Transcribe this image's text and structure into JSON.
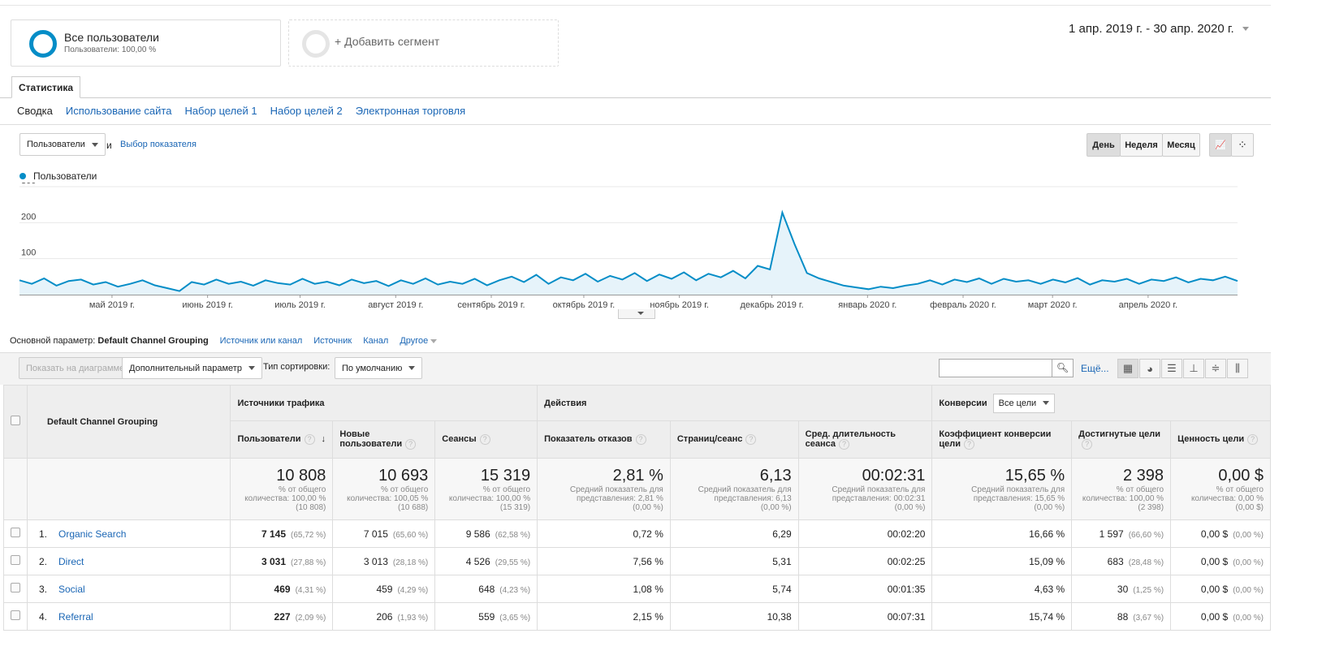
{
  "segments": {
    "all_users": {
      "title": "Все пользователи",
      "subtitle": "Пользователи: 100,00 %"
    },
    "add_segment": "+ Добавить сегмент"
  },
  "date_range": "1 апр. 2019 г. - 30 апр. 2020 г.",
  "tab": "Статистика",
  "subnav": [
    "Сводка",
    "Использование сайта",
    "Набор целей 1",
    "Набор целей 2",
    "Электронная торговля"
  ],
  "metric_select": "Пользователи",
  "and": "и",
  "choose_metric": "Выбор показателя",
  "granularity": [
    "День",
    "Неделя",
    "Месяц"
  ],
  "accent": "#058dc7",
  "chart_data": {
    "type": "line",
    "legend": "Пользователи",
    "ylim": [
      0,
      300
    ],
    "yticks": [
      "100",
      "200",
      "300"
    ],
    "grid": true,
    "x_start": "2019-04-01",
    "x_end": "2020-04-30",
    "step_days": 4,
    "xtick_labels": [
      "май 2019 г.",
      "июнь 2019 г.",
      "июль 2019 г.",
      "август 2019 г.",
      "сентябрь 2019 г.",
      "октябрь 2019 г.",
      "ноябрь 2019 г.",
      "декабрь 2019 г.",
      "январь 2020 г.",
      "февраль 2020 г.",
      "март 2020 г.",
      "апрель 2020 г."
    ],
    "values": [
      40,
      30,
      45,
      25,
      38,
      42,
      28,
      35,
      22,
      30,
      40,
      26,
      18,
      10,
      35,
      28,
      42,
      30,
      36,
      25,
      40,
      32,
      28,
      44,
      30,
      36,
      26,
      42,
      32,
      38,
      24,
      40,
      30,
      45,
      28,
      36,
      30,
      44,
      26,
      40,
      50,
      35,
      55,
      30,
      48,
      40,
      58,
      36,
      52,
      42,
      60,
      38,
      56,
      44,
      62,
      40,
      58,
      48,
      66,
      45,
      80,
      70,
      228,
      140,
      60,
      45,
      35,
      25,
      20,
      15,
      22,
      18,
      25,
      30,
      40,
      28,
      42,
      35,
      45,
      30,
      44,
      36,
      40,
      30,
      42,
      34,
      46,
      28,
      40,
      36,
      44,
      30,
      42,
      38,
      48,
      34,
      44,
      40,
      50,
      38
    ]
  },
  "primary_dim": {
    "label": "Основной параметр:",
    "current": "Default Channel Grouping",
    "options": [
      "Источник или канал",
      "Источник",
      "Канал",
      "Другое"
    ]
  },
  "toolbar": {
    "plot": "Показать на диаграмме",
    "secondary": "Дополнительный параметр",
    "sort_label": "Тип сортировки:",
    "sort_value": "По умолчанию",
    "more": "Ещё..."
  },
  "table": {
    "dim_header": "Default Channel Grouping",
    "group_traffic": "Источники трафика",
    "group_actions": "Действия",
    "group_conv": "Конверсии",
    "goal_select": "Все цели",
    "columns": [
      "Пользователи",
      "Новые пользователи",
      "Сеансы",
      "Показатель отказов",
      "Страниц/сеанс",
      "Сред. длительность сеанса",
      "Коэффициент конверсии цели",
      "Достигнутые цели",
      "Ценность цели"
    ],
    "totals": [
      {
        "value": "10 808",
        "l1": "% от общего",
        "l2": "количества: 100,00 %",
        "l3": "(10 808)"
      },
      {
        "value": "10 693",
        "l1": "% от общего",
        "l2": "количества: 100,05 %",
        "l3": "(10 688)"
      },
      {
        "value": "15 319",
        "l1": "% от общего",
        "l2": "количества: 100,00 %",
        "l3": "(15 319)"
      },
      {
        "value": "2,81 %",
        "l1": "Средний показатель для",
        "l2": "представления: 2,81 %",
        "l3": "(0,00 %)"
      },
      {
        "value": "6,13",
        "l1": "Средний показатель для",
        "l2": "представления: 6,13",
        "l3": "(0,00 %)"
      },
      {
        "value": "00:02:31",
        "l1": "Средний показатель для",
        "l2": "представления: 00:02:31",
        "l3": "(0,00 %)"
      },
      {
        "value": "15,65 %",
        "l1": "Средний показатель для",
        "l2": "представления: 15,65 %",
        "l3": "(0,00 %)"
      },
      {
        "value": "2 398",
        "l1": "% от общего",
        "l2": "количества: 100,00 %",
        "l3": "(2 398)"
      },
      {
        "value": "0,00 $",
        "l1": "% от общего",
        "l2": "количества: 0,00 %",
        "l3": "(0,00 $)"
      }
    ],
    "rows": [
      {
        "n": "1.",
        "name": "Organic Search",
        "users": "7 145",
        "users_pct": "(65,72 %)",
        "new": "7 015",
        "new_pct": "(65,60 %)",
        "sess": "9 586",
        "sess_pct": "(62,58 %)",
        "bounce": "0,72 %",
        "pages": "6,29",
        "dur": "00:02:20",
        "conv": "16,66 %",
        "goals": "1 597",
        "goals_pct": "(66,60 %)",
        "val": "0,00 $",
        "val_pct": "(0,00 %)"
      },
      {
        "n": "2.",
        "name": "Direct",
        "users": "3 031",
        "users_pct": "(27,88 %)",
        "new": "3 013",
        "new_pct": "(28,18 %)",
        "sess": "4 526",
        "sess_pct": "(29,55 %)",
        "bounce": "7,56 %",
        "pages": "5,31",
        "dur": "00:02:25",
        "conv": "15,09 %",
        "goals": "683",
        "goals_pct": "(28,48 %)",
        "val": "0,00 $",
        "val_pct": "(0,00 %)"
      },
      {
        "n": "3.",
        "name": "Social",
        "users": "469",
        "users_pct": "(4,31 %)",
        "new": "459",
        "new_pct": "(4,29 %)",
        "sess": "648",
        "sess_pct": "(4,23 %)",
        "bounce": "1,08 %",
        "pages": "5,74",
        "dur": "00:01:35",
        "conv": "4,63 %",
        "goals": "30",
        "goals_pct": "(1,25 %)",
        "val": "0,00 $",
        "val_pct": "(0,00 %)"
      },
      {
        "n": "4.",
        "name": "Referral",
        "users": "227",
        "users_pct": "(2,09 %)",
        "new": "206",
        "new_pct": "(1,93 %)",
        "sess": "559",
        "sess_pct": "(3,65 %)",
        "bounce": "2,15 %",
        "pages": "10,38",
        "dur": "00:07:31",
        "conv": "15,74 %",
        "goals": "88",
        "goals_pct": "(3,67 %)",
        "val": "0,00 $",
        "val_pct": "(0,00 %)"
      }
    ]
  }
}
